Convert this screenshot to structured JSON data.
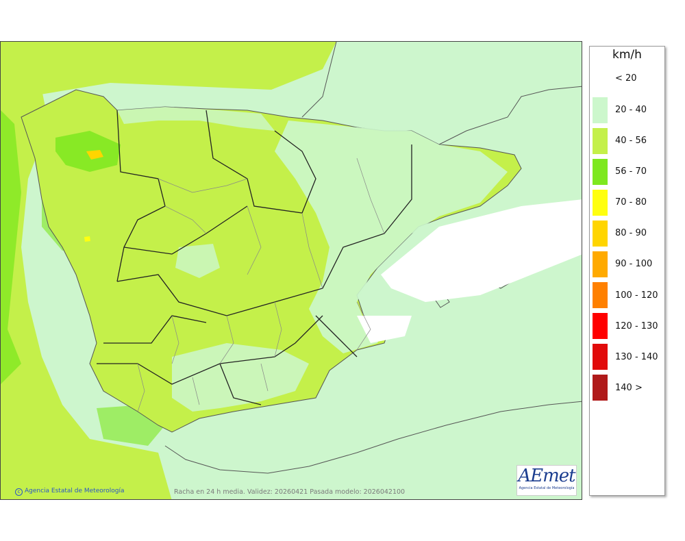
{
  "legend": {
    "unit": "km/h",
    "items": [
      {
        "label": "< 20",
        "color": "#ffffff"
      },
      {
        "label": "20 - 40",
        "color": "#ccf7cc"
      },
      {
        "label": "40 - 56",
        "color": "#c4f04a"
      },
      {
        "label": "56 - 70",
        "color": "#7ee81f"
      },
      {
        "label": "70 - 80",
        "color": "#ffff10"
      },
      {
        "label": "80 - 90",
        "color": "#ffd500"
      },
      {
        "label": "90 - 100",
        "color": "#ffaa00"
      },
      {
        "label": "100 - 120",
        "color": "#ff8000"
      },
      {
        "label": "120 - 130",
        "color": "#ff0000"
      },
      {
        "label": "130 - 140",
        "color": "#e10b0b"
      },
      {
        "label": "140 >",
        "color": "#b01a1a"
      }
    ]
  },
  "footer": {
    "copyright": "Agencia Estatal de Meteorología",
    "caption": "Racha en 24 h media. Validez: 20260421 Pasada modelo: 2026042100"
  },
  "logo": {
    "mark": "AEmet",
    "subtitle": "Agencia Estatal de Meteorología"
  },
  "colors": {
    "sea_low": "#cdf6cd",
    "band_40_56": "#c4f04a",
    "band_56_70": "#7ee81f",
    "band_70_80": "#ffff10",
    "band_80_90": "#ffd500",
    "white_calm": "#ffffff"
  }
}
